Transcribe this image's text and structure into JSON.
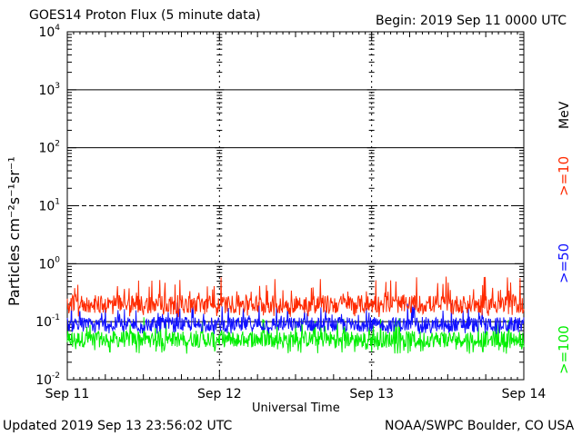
{
  "header": {
    "title": "GOES14 Proton Flux (5 minute data)",
    "begin": "Begin: 2019 Sep 11 0000 UTC"
  },
  "footer": {
    "updated": "Updated 2019 Sep 13 23:56:02 UTC",
    "source": "NOAA/SWPC Boulder, CO USA"
  },
  "chart_data": {
    "type": "line",
    "title": "GOES14 Proton Flux (5 minute data)",
    "xlabel": "Universal Time",
    "ylabel": "Particles cm⁻²s⁻¹sr⁻¹",
    "yscale": "log",
    "ylim": [
      0.01,
      10000
    ],
    "xlim": [
      "2019-09-11 00:00",
      "2019-09-14 00:00"
    ],
    "x_ticks": [
      "Sep 11",
      "Sep 12",
      "Sep 13",
      "Sep 14"
    ],
    "y_ticks": [
      {
        "base": "10",
        "exp": "-2"
      },
      {
        "base": "10",
        "exp": "-1"
      },
      {
        "base": "10",
        "exp": "0"
      },
      {
        "base": "10",
        "exp": "1"
      },
      {
        "base": "10",
        "exp": "2"
      },
      {
        "base": "10",
        "exp": "3"
      },
      {
        "base": "10",
        "exp": "4"
      }
    ],
    "unit_label": "MeV",
    "series": [
      {
        "name": ">=10",
        "color": "#ff2a00",
        "typical": 0.2,
        "min": 0.12,
        "max": 0.6
      },
      {
        "name": ">=50",
        "color": "#1010ff",
        "typical": 0.09,
        "min": 0.06,
        "max": 0.22
      },
      {
        "name": ">=100",
        "color": "#00ee00",
        "typical": 0.05,
        "min": 0.028,
        "max": 0.12
      }
    ],
    "grid": "solid at 10^0, 10^2, 10^3; dashed at 10^1; dashed verticals at day boundaries"
  }
}
